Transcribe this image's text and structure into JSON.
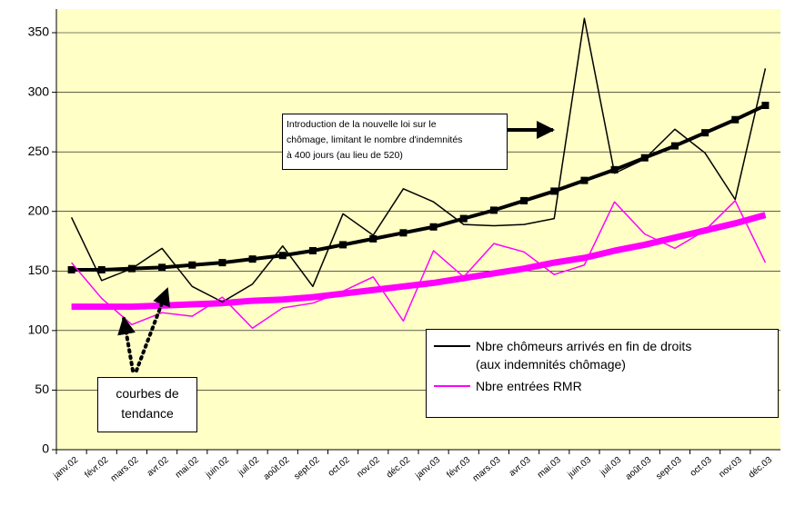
{
  "chart_data": {
    "type": "line",
    "categories": [
      "janv.02",
      "févr.02",
      "mars.02",
      "avr.02",
      "mai.02",
      "juin.02",
      "juil.02",
      "août.02",
      "sept.02",
      "oct.02",
      "nov.02",
      "déc.02",
      "janv.03",
      "févr.03",
      "mars.03",
      "avr.03",
      "mai.03",
      "juin.03",
      "juil.03",
      "août.03",
      "sept.03",
      "oct.03",
      "nov.03",
      "déc.03"
    ],
    "series": [
      {
        "name": "Nbre chômeurs arrivés en fin de droits\n(aux indemnités chômage)",
        "color": "#000000",
        "values": [
          195,
          142,
          152,
          169,
          137,
          124,
          139,
          171,
          137,
          198,
          180,
          219,
          208,
          189,
          188,
          189,
          194,
          362,
          232,
          244,
          269,
          249,
          210,
          320
        ]
      },
      {
        "name": "Nbre entrées RMR",
        "color": "#ff00ff",
        "values": [
          157,
          127,
          105,
          115,
          112,
          128,
          102,
          119,
          123,
          133,
          145,
          108,
          167,
          145,
          173,
          166,
          147,
          155,
          208,
          181,
          169,
          184,
          209,
          157
        ]
      }
    ],
    "trends": [
      {
        "color": "#000000",
        "values": [
          151,
          151,
          152,
          153,
          155,
          157,
          160,
          163,
          167,
          172,
          177,
          182,
          187,
          194,
          201,
          209,
          217,
          226,
          235,
          245,
          255,
          266,
          277,
          289
        ]
      },
      {
        "color": "#ff00ff",
        "values": [
          120,
          120,
          120,
          121,
          122,
          123,
          125,
          126,
          128,
          131,
          134,
          137,
          140,
          144,
          148,
          152,
          157,
          161,
          167,
          172,
          178,
          184,
          190,
          197
        ]
      }
    ],
    "ylim": [
      0,
      350
    ],
    "yticks": [
      0,
      50,
      100,
      150,
      200,
      250,
      300,
      350
    ],
    "grid": true,
    "annotations": [
      "Introduction de la nouvelle loi sur le\nchômage, limitant le nombre d'indemnités\nà 400 jours (au lieu de 520)",
      "courbes de\ntendance"
    ]
  }
}
